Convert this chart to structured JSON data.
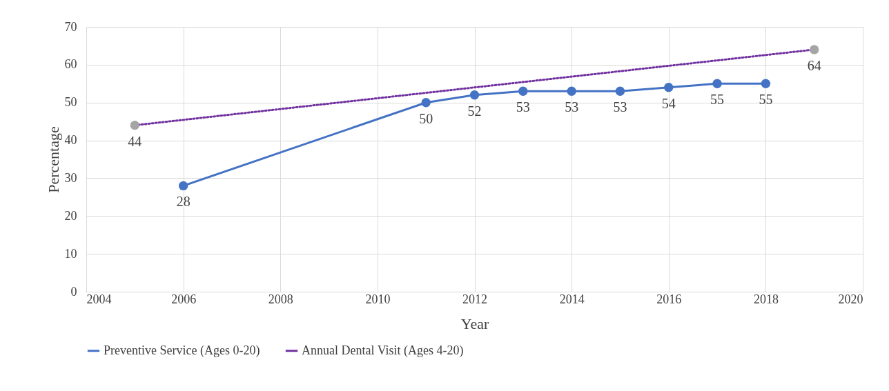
{
  "chart_data": {
    "type": "line",
    "xlabel": "Year",
    "ylabel": "Percentage",
    "series": [
      {
        "name": "Preventive Service (Ages 0-20)",
        "color": "#4472c4",
        "x": [
          2006,
          2011,
          2012,
          2013,
          2014,
          2015,
          2016,
          2017,
          2018
        ],
        "values": [
          28,
          50,
          52,
          53,
          53,
          53,
          54,
          55,
          55
        ],
        "line_style": "solid"
      },
      {
        "name": "Annual Dental Visit (Ages 4-20)",
        "color": "#7030a0",
        "colors": [
          "#a5a5a5",
          "#a5a5a5"
        ],
        "x": [
          2005,
          2019
        ],
        "values": [
          44,
          64
        ],
        "line_style": "dotted"
      }
    ],
    "xlim": [
      2004,
      2020
    ],
    "xticks": [
      2004,
      2006,
      2008,
      2010,
      2012,
      2014,
      2016,
      2018,
      2020
    ],
    "ylim": [
      0,
      70
    ],
    "yticks": [
      0,
      10,
      20,
      30,
      40,
      50,
      60,
      70
    ],
    "grid": true,
    "legend": "bottom",
    "marker": "circle",
    "data_labels": true
  }
}
